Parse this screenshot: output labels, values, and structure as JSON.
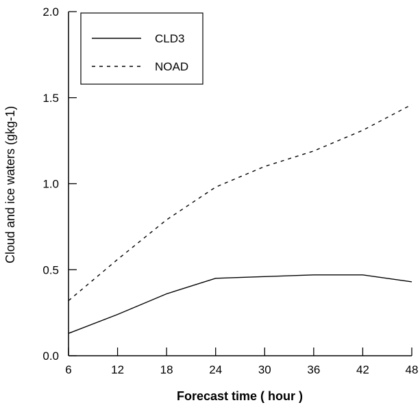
{
  "chart_data": {
    "type": "line",
    "title": "",
    "xlabel": "Forecast time ( hour )",
    "ylabel": "Cloud and ice waters (gkg-1)",
    "xlim": [
      6,
      48
    ],
    "ylim": [
      0.0,
      2.0
    ],
    "xticks": [
      "6",
      "12",
      "18",
      "24",
      "30",
      "36",
      "42",
      "48"
    ],
    "yticks": [
      "0.0",
      "0.5",
      "1.0",
      "1.5",
      "2.0"
    ],
    "legend_position": "top-left",
    "grid": false,
    "series": [
      {
        "name": "CLD3",
        "style": "solid",
        "color": "#000000",
        "x": [
          6,
          12,
          18,
          24,
          30,
          36,
          42,
          48
        ],
        "y": [
          0.13,
          0.24,
          0.36,
          0.45,
          0.46,
          0.47,
          0.47,
          0.43
        ]
      },
      {
        "name": "NOAD",
        "style": "dashed",
        "color": "#000000",
        "x": [
          6,
          12,
          18,
          24,
          30,
          36,
          42,
          48
        ],
        "y": [
          0.32,
          0.56,
          0.79,
          0.98,
          1.1,
          1.19,
          1.31,
          1.46
        ]
      }
    ]
  }
}
